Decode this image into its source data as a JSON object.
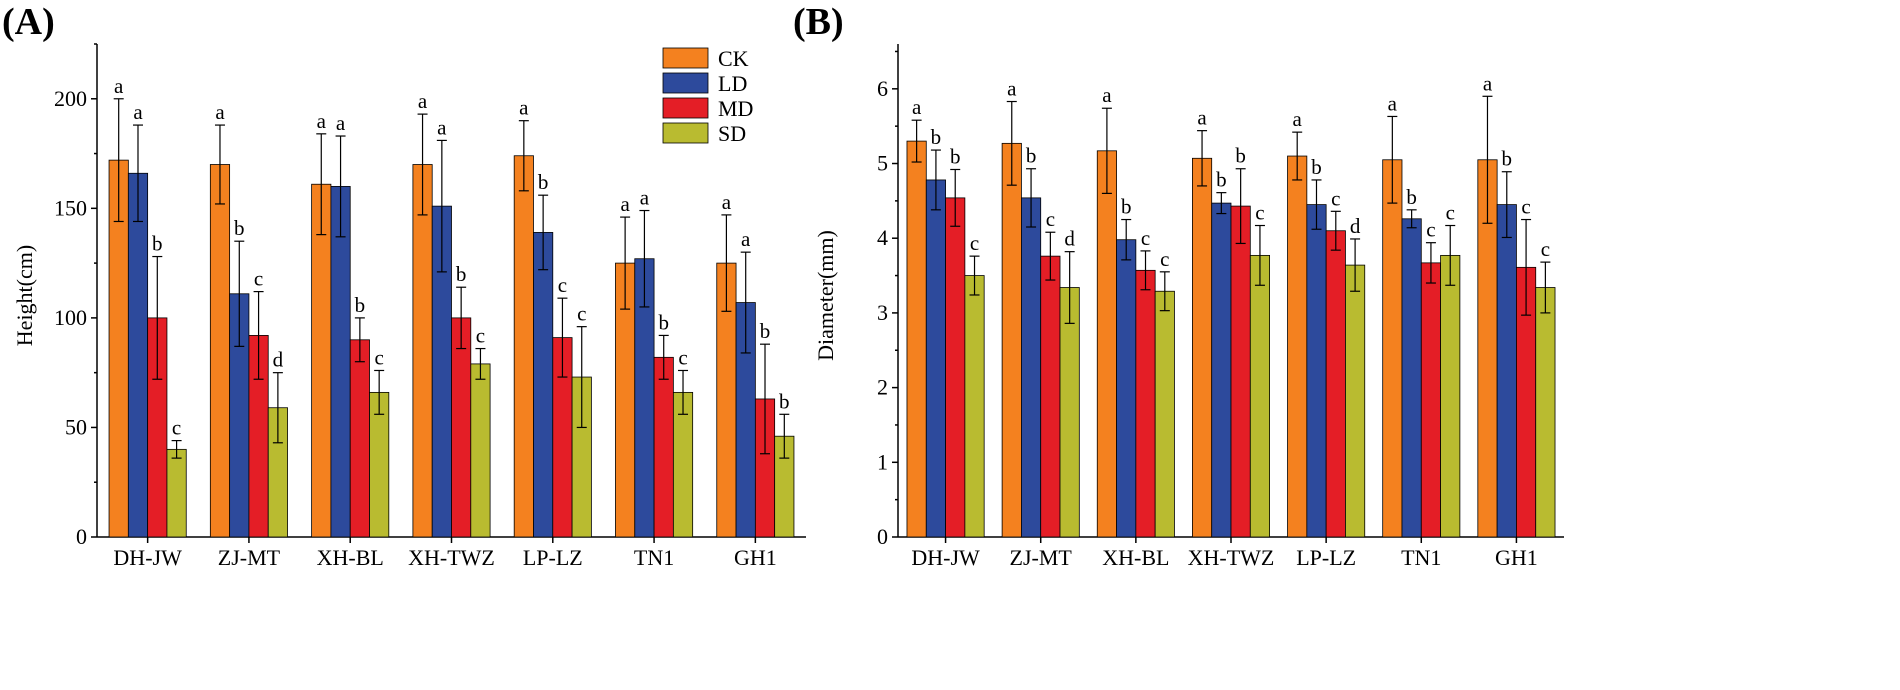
{
  "colors": {
    "CK": "#f4811f",
    "LD": "#2d4a9c",
    "MD": "#e41e26",
    "SD": "#b9bb30"
  },
  "chart_data": [
    {
      "type": "bar",
      "panel_label": "(A)",
      "ylabel": "Height(cm)",
      "xlabel": "",
      "ylim": [
        0,
        225
      ],
      "yticks": [
        0,
        50,
        100,
        150,
        200
      ],
      "categories": [
        "DH-JW",
        "ZJ-MT",
        "XH-BL",
        "XH-TWZ",
        "LP-LZ",
        "TN1",
        "GH1"
      ],
      "legend": {
        "position": "top-right",
        "entries": [
          "CK",
          "LD",
          "MD",
          "SD"
        ]
      },
      "series": [
        {
          "name": "CK",
          "values": [
            172,
            170,
            161,
            170,
            174,
            125,
            125
          ],
          "errors": [
            28,
            18,
            23,
            23,
            16,
            21,
            22
          ],
          "labels": [
            "a",
            "a",
            "a",
            "a",
            "a",
            "a",
            "a"
          ]
        },
        {
          "name": "LD",
          "values": [
            166,
            111,
            160,
            151,
            139,
            127,
            107
          ],
          "errors": [
            22,
            24,
            23,
            30,
            17,
            22,
            23
          ],
          "labels": [
            "a",
            "b",
            "a",
            "a",
            "b",
            "a",
            "a"
          ]
        },
        {
          "name": "MD",
          "values": [
            100,
            92,
            90,
            100,
            91,
            82,
            63
          ],
          "errors": [
            28,
            20,
            10,
            14,
            18,
            10,
            25
          ],
          "labels": [
            "b",
            "c",
            "b",
            "b",
            "c",
            "b",
            "b"
          ]
        },
        {
          "name": "SD",
          "values": [
            40,
            59,
            66,
            79,
            73,
            66,
            46
          ],
          "errors": [
            4,
            16,
            10,
            7,
            23,
            10,
            10
          ],
          "labels": [
            "c",
            "d",
            "c",
            "c",
            "c",
            "c",
            "b"
          ]
        }
      ]
    },
    {
      "type": "bar",
      "panel_label": "(B)",
      "ylabel": "Diameter(mm)",
      "xlabel": "",
      "ylim": [
        0,
        6.6
      ],
      "yticks": [
        0,
        1,
        2,
        3,
        4,
        5,
        6
      ],
      "categories": [
        "DH-JW",
        "ZJ-MT",
        "XH-BL",
        "XH-TWZ",
        "LP-LZ",
        "TN1",
        "GH1"
      ],
      "legend": null,
      "series": [
        {
          "name": "CK",
          "values": [
            5.3,
            5.27,
            5.17,
            5.07,
            5.1,
            5.05,
            5.05
          ],
          "errors": [
            0.28,
            0.56,
            0.57,
            0.37,
            0.32,
            0.58,
            0.85
          ],
          "labels": [
            "a",
            "a",
            "a",
            "a",
            "a",
            "a",
            "a"
          ]
        },
        {
          "name": "LD",
          "values": [
            4.78,
            4.54,
            3.98,
            4.47,
            4.45,
            4.26,
            4.45
          ],
          "errors": [
            0.4,
            0.39,
            0.27,
            0.14,
            0.33,
            0.12,
            0.44
          ],
          "labels": [
            "b",
            "b",
            "b",
            "b",
            "b",
            "b",
            "b"
          ]
        },
        {
          "name": "MD",
          "values": [
            4.54,
            3.76,
            3.57,
            4.43,
            4.1,
            3.67,
            3.61
          ],
          "errors": [
            0.38,
            0.32,
            0.26,
            0.5,
            0.26,
            0.27,
            0.64
          ],
          "labels": [
            "b",
            "c",
            "c",
            "b",
            "c",
            "c",
            "c"
          ]
        },
        {
          "name": "SD",
          "values": [
            3.5,
            3.34,
            3.29,
            3.77,
            3.64,
            3.77,
            3.34
          ],
          "errors": [
            0.26,
            0.48,
            0.26,
            0.4,
            0.35,
            0.4,
            0.34
          ],
          "labels": [
            "c",
            "d",
            "c",
            "c",
            "d",
            "c",
            "c"
          ]
        }
      ]
    }
  ]
}
